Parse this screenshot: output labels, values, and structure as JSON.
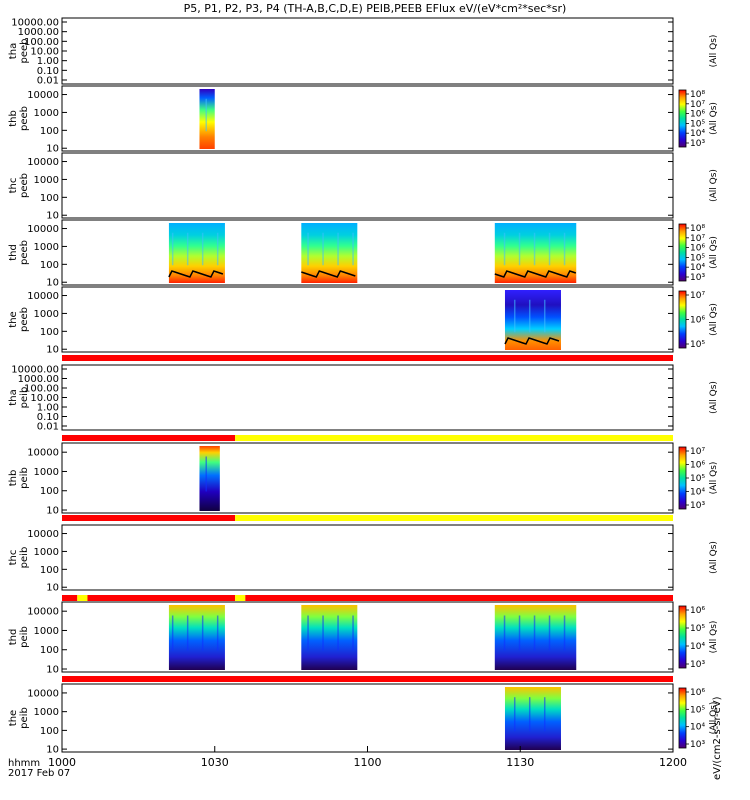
{
  "title": "P5, P1, P2, P3, P4 (TH-A,B,C,D,E) PEIB,PEEB EFlux eV/(eV*cm²*sec*sr)",
  "date_label": "hhmm\n2017 Feb 07",
  "x_axis": {
    "ticks": [
      "1000",
      "1030",
      "1100",
      "1130",
      "1200"
    ]
  },
  "cbar_labels": {
    "top": "eV/(cm2-s-sr-eV)",
    "qs": "(All Qs)"
  },
  "colors": {
    "flag_red": "#ff0000",
    "flag_yellow": "#ffff00",
    "colorbar": [
      "#500070",
      "#2a00d0",
      "#0040ff",
      "#00c0ff",
      "#00e0a0",
      "#40ff40",
      "#ffff00",
      "#ffa000",
      "#ff3000",
      "#ff0000"
    ]
  },
  "chart_data": {
    "type": "heatmap",
    "time_range": [
      "10:00",
      "12:00"
    ],
    "panels": [
      {
        "name": "tha peeb",
        "label1": "tha",
        "label2": "peeb",
        "ylog": true,
        "ylim": [
          0.01,
          10000
        ],
        "yticks": [
          "10000.00",
          "1000.00",
          "100.00",
          "10.00",
          "1.00",
          "0.10",
          "0.01"
        ],
        "intervals": [],
        "colorbar": null
      },
      {
        "name": "thb peeb",
        "label1": "thb",
        "label2": "peeb",
        "ylog": true,
        "ylim": [
          7,
          30000
        ],
        "yticks": [
          "10000",
          "1000",
          "100",
          "10"
        ],
        "intervals": [
          [
            "10:27",
            "10:30"
          ]
        ],
        "colorbar": [
          "10⁸",
          "10⁷",
          "10⁶",
          "10⁵",
          "10⁴",
          "10³"
        ]
      },
      {
        "name": "thc peeb",
        "label1": "thc",
        "label2": "peeb",
        "ylog": true,
        "ylim": [
          7,
          30000
        ],
        "yticks": [
          "10000",
          "1000",
          "100",
          "10"
        ],
        "intervals": [],
        "colorbar": null
      },
      {
        "name": "thd peeb",
        "label1": "thd",
        "label2": "peeb",
        "ylog": true,
        "ylim": [
          7,
          30000
        ],
        "yticks": [
          "10000",
          "1000",
          "100",
          "10"
        ],
        "intervals": [
          [
            "10:21",
            "10:32"
          ],
          [
            "10:47",
            "10:58"
          ],
          [
            "11:25",
            "11:41"
          ]
        ],
        "colorbar": [
          "10⁸",
          "10⁷",
          "10⁶",
          "10⁵",
          "10⁴",
          "10³"
        ]
      },
      {
        "name": "the peeb",
        "label1": "the",
        "label2": "peeb",
        "ylog": true,
        "ylim": [
          7,
          30000
        ],
        "yticks": [
          "10000",
          "1000",
          "100",
          "10"
        ],
        "intervals": [
          [
            "11:27",
            "11:38"
          ]
        ],
        "colorbar": [
          "10⁷",
          "10⁶",
          "10⁵"
        ]
      },
      {
        "name": "tha peib",
        "label1": "tha",
        "label2": "peib",
        "ylog": true,
        "ylim": [
          0.01,
          10000
        ],
        "yticks": [
          "10000.00",
          "1000.00",
          "100.00",
          "10.00",
          "1.00",
          "0.10",
          "0.01"
        ],
        "intervals": [],
        "colorbar": null
      },
      {
        "name": "thb peib",
        "label1": "thb",
        "label2": "peib",
        "ylog": true,
        "ylim": [
          7,
          30000
        ],
        "yticks": [
          "10000",
          "1000",
          "100",
          "10"
        ],
        "intervals": [
          [
            "10:27",
            "10:31"
          ]
        ],
        "colorbar": [
          "10⁷",
          "10⁶",
          "10⁵",
          "10⁴",
          "10³"
        ]
      },
      {
        "name": "thc peib",
        "label1": "thc",
        "label2": "peib",
        "ylog": true,
        "ylim": [
          7,
          30000
        ],
        "yticks": [
          "10000",
          "1000",
          "100",
          "10"
        ],
        "intervals": [],
        "colorbar": null
      },
      {
        "name": "thd peib",
        "label1": "thd",
        "label2": "peib",
        "ylog": true,
        "ylim": [
          7,
          30000
        ],
        "yticks": [
          "10000",
          "1000",
          "100",
          "10"
        ],
        "intervals": [
          [
            "10:21",
            "10:32"
          ],
          [
            "10:47",
            "10:58"
          ],
          [
            "11:25",
            "11:41"
          ]
        ],
        "colorbar": [
          "10⁶",
          "10⁵",
          "10⁴",
          "10³"
        ]
      },
      {
        "name": "the peib",
        "label1": "the",
        "label2": "peib",
        "ylog": true,
        "ylim": [
          7,
          30000
        ],
        "yticks": [
          "10000",
          "1000",
          "100",
          "10"
        ],
        "intervals": [
          [
            "11:27",
            "11:38"
          ]
        ],
        "colorbar": [
          "10⁶",
          "10⁵",
          "10⁴",
          "10³"
        ]
      }
    ],
    "flag_bars": [
      {
        "segments": [
          [
            "10:00",
            "12:00",
            "red"
          ]
        ]
      },
      {
        "segments": [
          [
            "10:00",
            "10:34",
            "red"
          ],
          [
            "10:34",
            "12:00",
            "yellow"
          ]
        ]
      },
      {
        "segments": [
          [
            "10:00",
            "10:34",
            "red"
          ],
          [
            "10:34",
            "12:00",
            "yellow"
          ]
        ]
      },
      {
        "segments": [
          [
            "10:00",
            "10:03",
            "red"
          ],
          [
            "10:03",
            "10:05",
            "yellow"
          ],
          [
            "10:05",
            "10:34",
            "red"
          ],
          [
            "10:34",
            "10:36",
            "yellow"
          ],
          [
            "10:36",
            "12:00",
            "red"
          ]
        ]
      },
      {
        "segments": [
          [
            "10:00",
            "12:00",
            "red"
          ]
        ]
      }
    ]
  }
}
